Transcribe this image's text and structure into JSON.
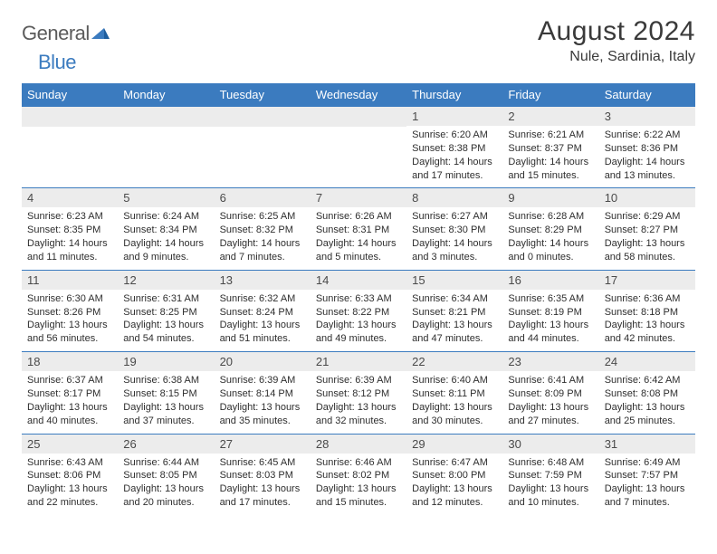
{
  "logo": {
    "word1": "General",
    "word2": "Blue"
  },
  "title": "August 2024",
  "location": "Nule, Sardinia, Italy",
  "colors": {
    "header_bar_bg": "#3b7bbf",
    "header_bar_text": "#ffffff",
    "daynum_bg": "#ececec",
    "cell_border": "#3b7bbf",
    "page_bg": "#ffffff",
    "body_text": "#2e2e2e",
    "title_text": "#3a3a3a",
    "logo_gray": "#5b5b5b",
    "logo_blue": "#3b7bbf"
  },
  "typography": {
    "title_fontsize": 30,
    "location_fontsize": 16,
    "weekday_fontsize": 13,
    "daynum_fontsize": 13,
    "daydata_fontsize": 11
  },
  "layout": {
    "columns": 7,
    "rows": 5,
    "first_day_column": 4
  },
  "weekdays": [
    "Sunday",
    "Monday",
    "Tuesday",
    "Wednesday",
    "Thursday",
    "Friday",
    "Saturday"
  ],
  "days": [
    {
      "n": 1,
      "sunrise": "6:20 AM",
      "sunset": "8:38 PM",
      "dl_h": 14,
      "dl_m": 17
    },
    {
      "n": 2,
      "sunrise": "6:21 AM",
      "sunset": "8:37 PM",
      "dl_h": 14,
      "dl_m": 15
    },
    {
      "n": 3,
      "sunrise": "6:22 AM",
      "sunset": "8:36 PM",
      "dl_h": 14,
      "dl_m": 13
    },
    {
      "n": 4,
      "sunrise": "6:23 AM",
      "sunset": "8:35 PM",
      "dl_h": 14,
      "dl_m": 11
    },
    {
      "n": 5,
      "sunrise": "6:24 AM",
      "sunset": "8:34 PM",
      "dl_h": 14,
      "dl_m": 9
    },
    {
      "n": 6,
      "sunrise": "6:25 AM",
      "sunset": "8:32 PM",
      "dl_h": 14,
      "dl_m": 7
    },
    {
      "n": 7,
      "sunrise": "6:26 AM",
      "sunset": "8:31 PM",
      "dl_h": 14,
      "dl_m": 5
    },
    {
      "n": 8,
      "sunrise": "6:27 AM",
      "sunset": "8:30 PM",
      "dl_h": 14,
      "dl_m": 3
    },
    {
      "n": 9,
      "sunrise": "6:28 AM",
      "sunset": "8:29 PM",
      "dl_h": 14,
      "dl_m": 0
    },
    {
      "n": 10,
      "sunrise": "6:29 AM",
      "sunset": "8:27 PM",
      "dl_h": 13,
      "dl_m": 58
    },
    {
      "n": 11,
      "sunrise": "6:30 AM",
      "sunset": "8:26 PM",
      "dl_h": 13,
      "dl_m": 56
    },
    {
      "n": 12,
      "sunrise": "6:31 AM",
      "sunset": "8:25 PM",
      "dl_h": 13,
      "dl_m": 54
    },
    {
      "n": 13,
      "sunrise": "6:32 AM",
      "sunset": "8:24 PM",
      "dl_h": 13,
      "dl_m": 51
    },
    {
      "n": 14,
      "sunrise": "6:33 AM",
      "sunset": "8:22 PM",
      "dl_h": 13,
      "dl_m": 49
    },
    {
      "n": 15,
      "sunrise": "6:34 AM",
      "sunset": "8:21 PM",
      "dl_h": 13,
      "dl_m": 47
    },
    {
      "n": 16,
      "sunrise": "6:35 AM",
      "sunset": "8:19 PM",
      "dl_h": 13,
      "dl_m": 44
    },
    {
      "n": 17,
      "sunrise": "6:36 AM",
      "sunset": "8:18 PM",
      "dl_h": 13,
      "dl_m": 42
    },
    {
      "n": 18,
      "sunrise": "6:37 AM",
      "sunset": "8:17 PM",
      "dl_h": 13,
      "dl_m": 40
    },
    {
      "n": 19,
      "sunrise": "6:38 AM",
      "sunset": "8:15 PM",
      "dl_h": 13,
      "dl_m": 37
    },
    {
      "n": 20,
      "sunrise": "6:39 AM",
      "sunset": "8:14 PM",
      "dl_h": 13,
      "dl_m": 35
    },
    {
      "n": 21,
      "sunrise": "6:39 AM",
      "sunset": "8:12 PM",
      "dl_h": 13,
      "dl_m": 32
    },
    {
      "n": 22,
      "sunrise": "6:40 AM",
      "sunset": "8:11 PM",
      "dl_h": 13,
      "dl_m": 30
    },
    {
      "n": 23,
      "sunrise": "6:41 AM",
      "sunset": "8:09 PM",
      "dl_h": 13,
      "dl_m": 27
    },
    {
      "n": 24,
      "sunrise": "6:42 AM",
      "sunset": "8:08 PM",
      "dl_h": 13,
      "dl_m": 25
    },
    {
      "n": 25,
      "sunrise": "6:43 AM",
      "sunset": "8:06 PM",
      "dl_h": 13,
      "dl_m": 22
    },
    {
      "n": 26,
      "sunrise": "6:44 AM",
      "sunset": "8:05 PM",
      "dl_h": 13,
      "dl_m": 20
    },
    {
      "n": 27,
      "sunrise": "6:45 AM",
      "sunset": "8:03 PM",
      "dl_h": 13,
      "dl_m": 17
    },
    {
      "n": 28,
      "sunrise": "6:46 AM",
      "sunset": "8:02 PM",
      "dl_h": 13,
      "dl_m": 15
    },
    {
      "n": 29,
      "sunrise": "6:47 AM",
      "sunset": "8:00 PM",
      "dl_h": 13,
      "dl_m": 12
    },
    {
      "n": 30,
      "sunrise": "6:48 AM",
      "sunset": "7:59 PM",
      "dl_h": 13,
      "dl_m": 10
    },
    {
      "n": 31,
      "sunrise": "6:49 AM",
      "sunset": "7:57 PM",
      "dl_h": 13,
      "dl_m": 7
    }
  ],
  "labels": {
    "sunrise_prefix": "Sunrise: ",
    "sunset_prefix": "Sunset: ",
    "daylight_prefix": "Daylight: ",
    "hours_word": " hours",
    "and_word": "and ",
    "minutes_word": " minutes."
  }
}
